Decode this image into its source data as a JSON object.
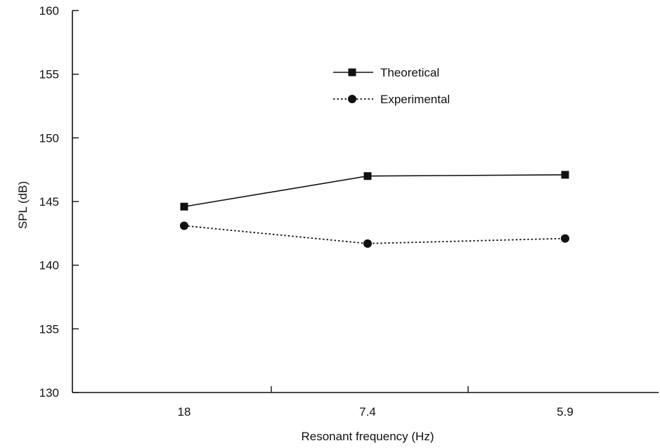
{
  "chart_data": {
    "type": "line",
    "categories": [
      "18",
      "7.4",
      "5.9"
    ],
    "series": [
      {
        "name": "Theoretical",
        "values": [
          144.6,
          147.0,
          147.1
        ],
        "marker": "square",
        "line_style": "solid",
        "color": "#111111"
      },
      {
        "name": "Experimental",
        "values": [
          143.1,
          141.7,
          142.1
        ],
        "marker": "circle",
        "line_style": "dotted",
        "color": "#111111"
      }
    ],
    "title": "",
    "xlabel": "Resonant frequency (Hz)",
    "ylabel": "SPL (dB)",
    "ylim": [
      130,
      160
    ],
    "yticks": [
      "130",
      "135",
      "140",
      "145",
      "150",
      "155",
      "160"
    ],
    "grid": false,
    "legend_position": "top-center"
  }
}
